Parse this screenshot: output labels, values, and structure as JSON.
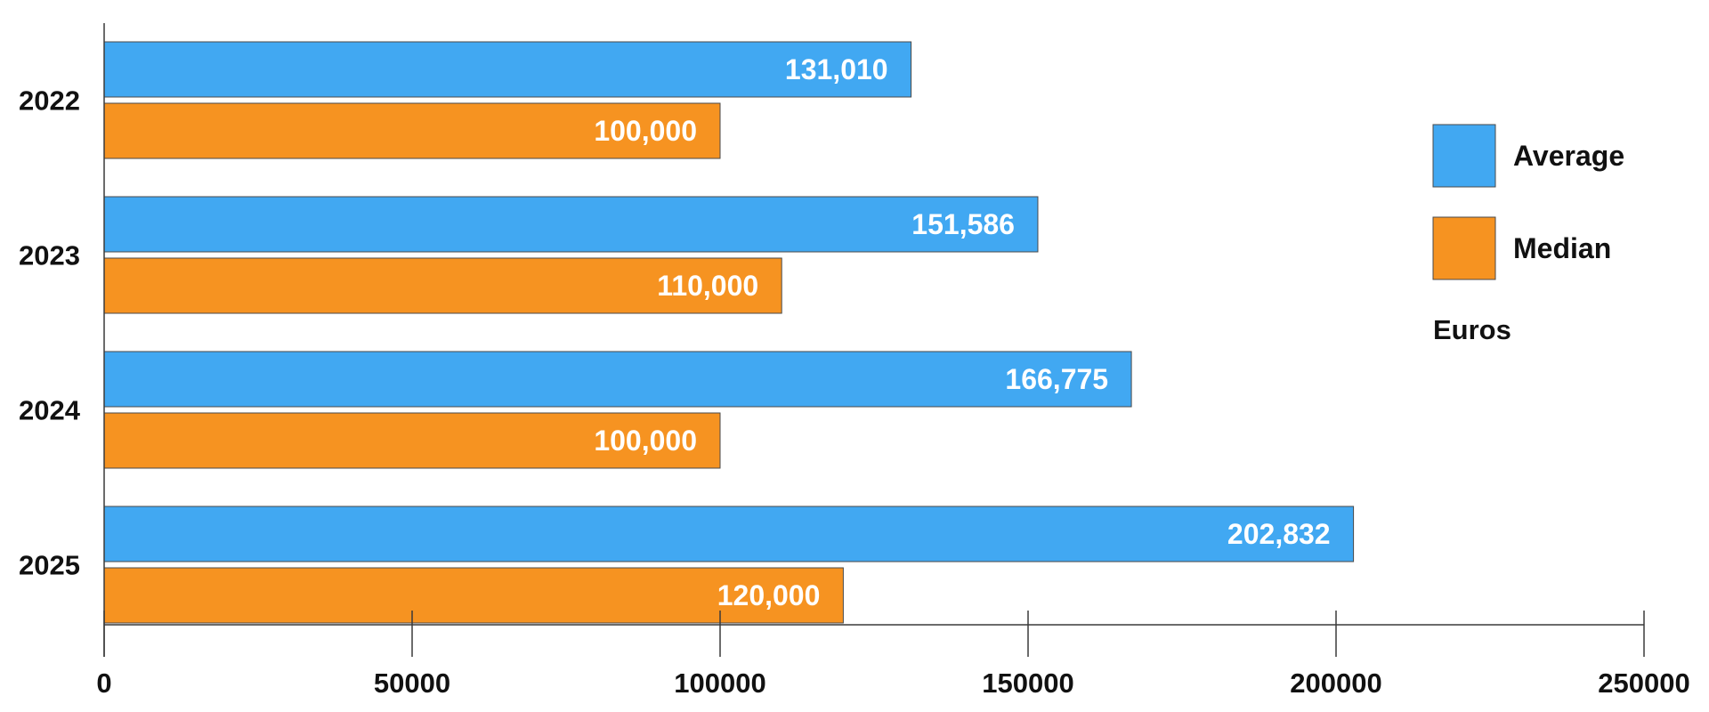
{
  "chart_data": {
    "type": "bar",
    "orientation": "horizontal",
    "title": "",
    "xlabel": "",
    "ylabel": "",
    "unit_label": "Euros",
    "categories": [
      "2022",
      "2023",
      "2024",
      "2025"
    ],
    "series": [
      {
        "name": "Average",
        "color": "#41a8f2",
        "values": [
          131010,
          151586,
          166775,
          202832
        ],
        "labels": [
          "131,010",
          "151,586",
          "166,775",
          "202,832"
        ]
      },
      {
        "name": "Median",
        "color": "#f69321",
        "values": [
          100000,
          110000,
          100000,
          120000
        ],
        "labels": [
          "100,000",
          "110,000",
          "100,000",
          "120,000"
        ]
      }
    ],
    "xlim": [
      0,
      250000
    ],
    "xticks": [
      0,
      50000,
      100000,
      150000,
      200000,
      250000
    ],
    "xtick_labels": [
      "0",
      "50000",
      "100000",
      "150000",
      "200000",
      "250000"
    ],
    "grid": false,
    "legend_position": "right"
  }
}
